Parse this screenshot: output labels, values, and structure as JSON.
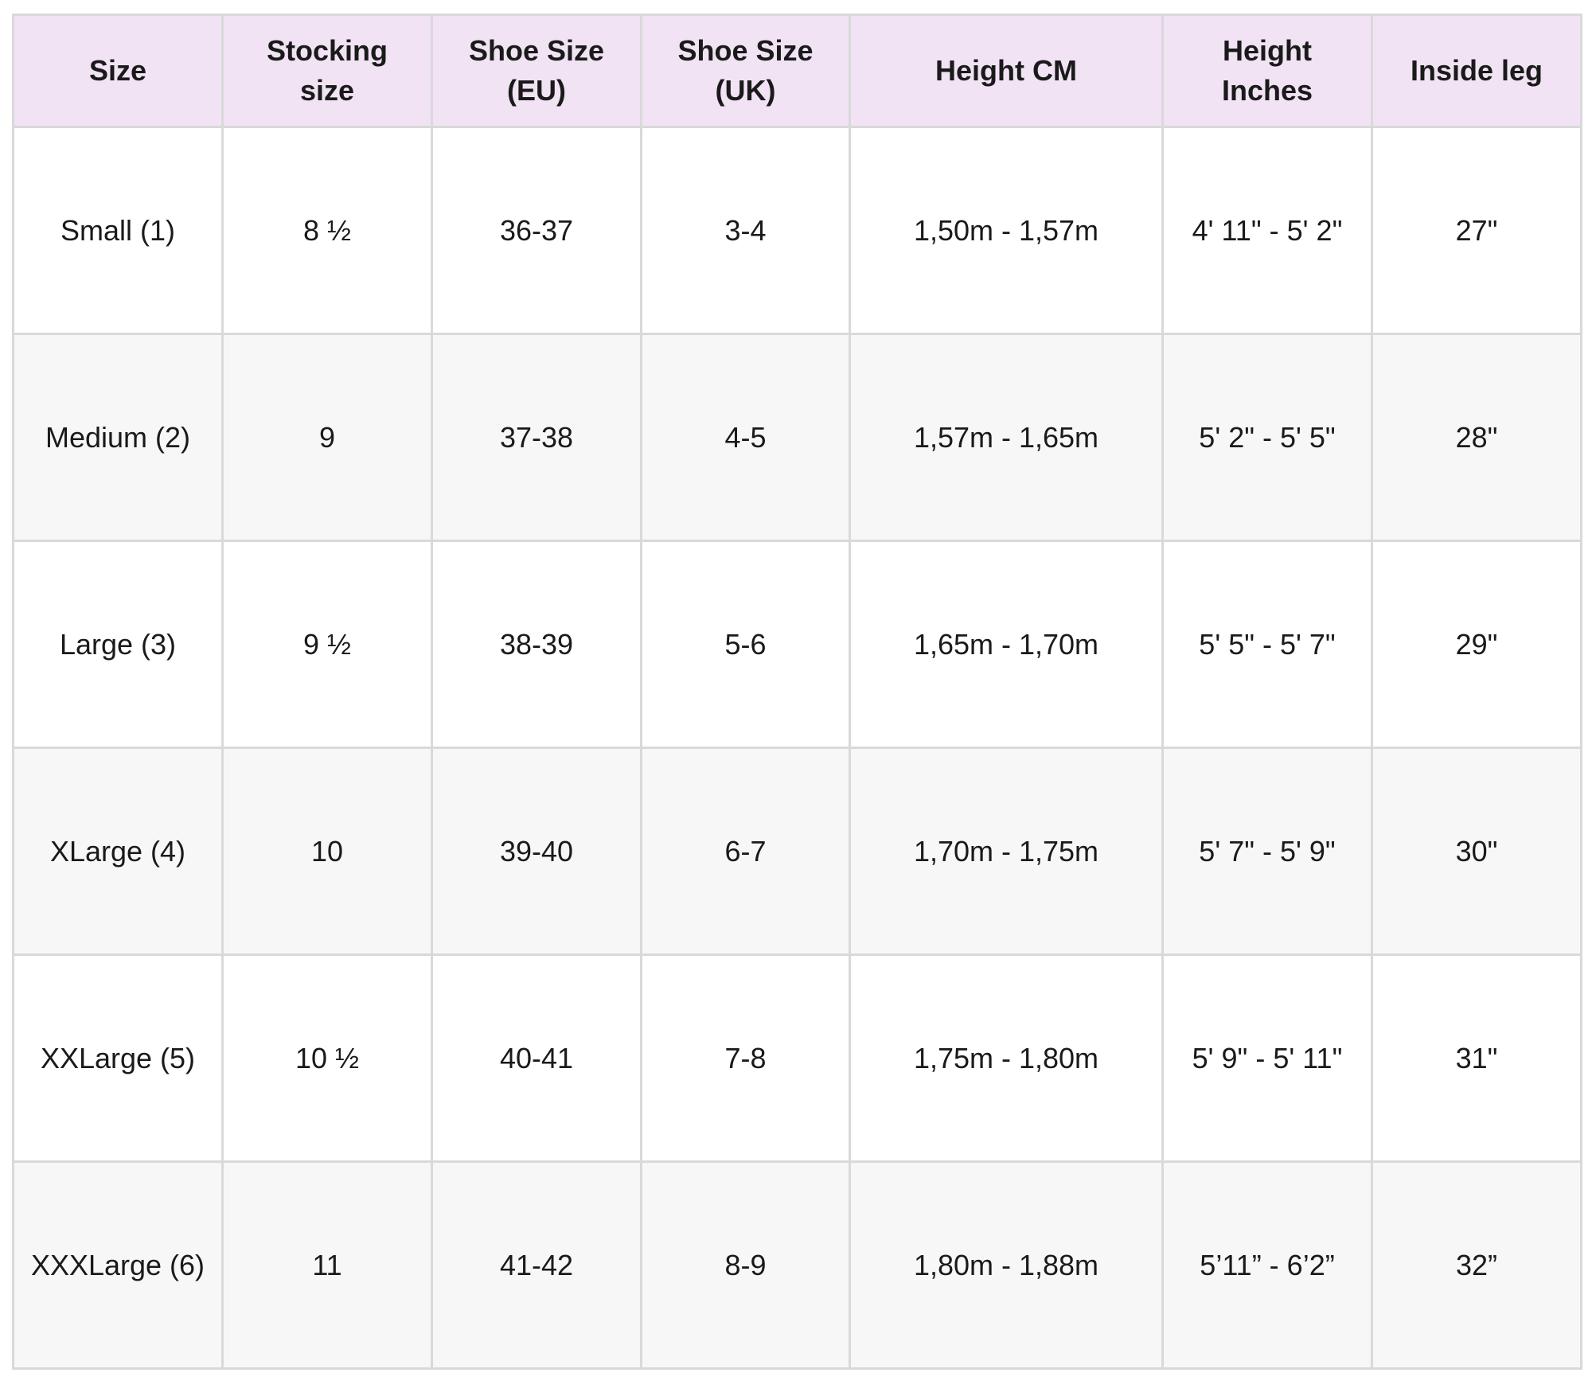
{
  "colors": {
    "header_bg": "#f1e2f4",
    "alt_row_bg": "#f7f7f7",
    "border": "#d9d9d9"
  },
  "headers": [
    [
      "Size"
    ],
    [
      "Stocking",
      "size"
    ],
    [
      "Shoe Size",
      "(EU)"
    ],
    [
      "Shoe Size",
      "(UK)"
    ],
    [
      "Height CM"
    ],
    [
      "Height",
      "Inches"
    ],
    [
      "Inside leg"
    ]
  ],
  "rows": [
    [
      "Small (1)",
      "8 ½",
      "36-37",
      "3-4",
      "1,50m - 1,57m",
      "4' 11\" - 5' 2\"",
      "27\""
    ],
    [
      "Medium (2)",
      "9",
      "37-38",
      "4-5",
      "1,57m - 1,65m",
      "5' 2\" - 5' 5\"",
      "28\""
    ],
    [
      "Large (3)",
      "9 ½",
      "38-39",
      "5-6",
      "1,65m - 1,70m",
      "5' 5\" - 5' 7\"",
      "29\""
    ],
    [
      "XLarge (4)",
      "10",
      "39-40",
      "6-7",
      "1,70m - 1,75m",
      "5' 7\" - 5' 9\"",
      "30\""
    ],
    [
      "XXLarge (5)",
      "10 ½",
      "40-41",
      "7-8",
      "1,75m - 1,80m",
      "5' 9\" - 5' 11\"",
      "31\""
    ],
    [
      "XXXLarge (6)",
      "11",
      "41-42",
      "8-9",
      "1,80m - 1,88m",
      "5’11” - 6’2”",
      "32”"
    ]
  ]
}
